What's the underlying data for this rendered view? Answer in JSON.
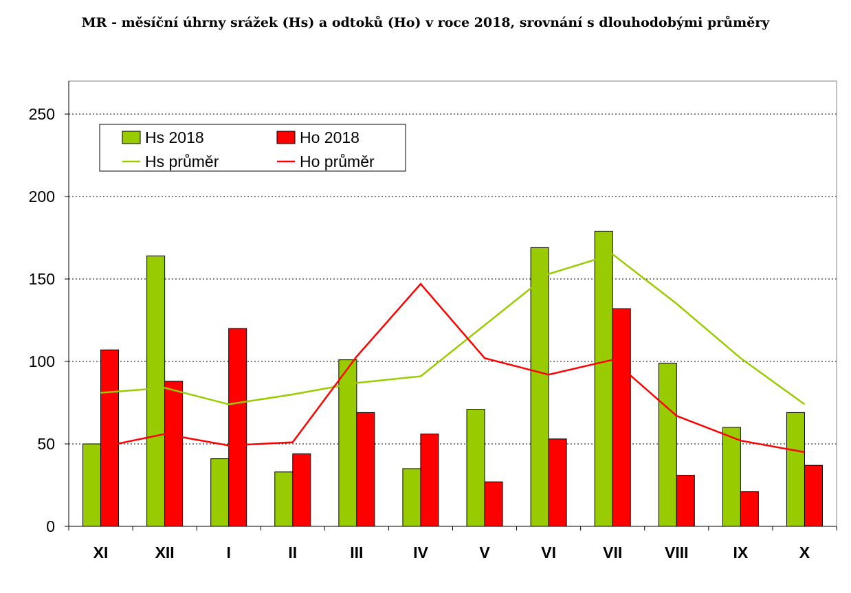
{
  "chart_data": {
    "type": "bar",
    "title": "MR - měsíční úhrny srážek (Hs) a odtoků (Ho) v roce 2018, srovnání s dlouhodobými průměry",
    "categories": [
      "XI",
      "XII",
      "I",
      "II",
      "III",
      "IV",
      "V",
      "VI",
      "VII",
      "VIII",
      "IX",
      "X"
    ],
    "ylim": [
      0,
      270
    ],
    "yticks": [
      0,
      50,
      100,
      150,
      200,
      250
    ],
    "grid": "horizontal dotted",
    "legend_position": "top-left",
    "series": [
      {
        "name": "Hs 2018",
        "kind": "bar",
        "color": "#99cc00",
        "values": [
          50,
          164,
          41,
          33,
          101,
          35,
          71,
          169,
          179,
          99,
          60,
          69
        ]
      },
      {
        "name": "Ho 2018",
        "kind": "bar",
        "color": "#ff0000",
        "values": [
          107,
          88,
          120,
          44,
          69,
          56,
          27,
          53,
          132,
          31,
          21,
          37
        ]
      },
      {
        "name": "Hs průměr",
        "kind": "line",
        "color": "#99cc00",
        "values": [
          81,
          84,
          74,
          80,
          87,
          91,
          122,
          153,
          165,
          135,
          102,
          74
        ]
      },
      {
        "name": "Ho průměr",
        "kind": "line",
        "color": "#ff0000",
        "values": [
          48,
          56,
          49,
          51,
          103,
          147,
          102,
          92,
          101,
          67,
          52,
          45
        ]
      }
    ]
  }
}
